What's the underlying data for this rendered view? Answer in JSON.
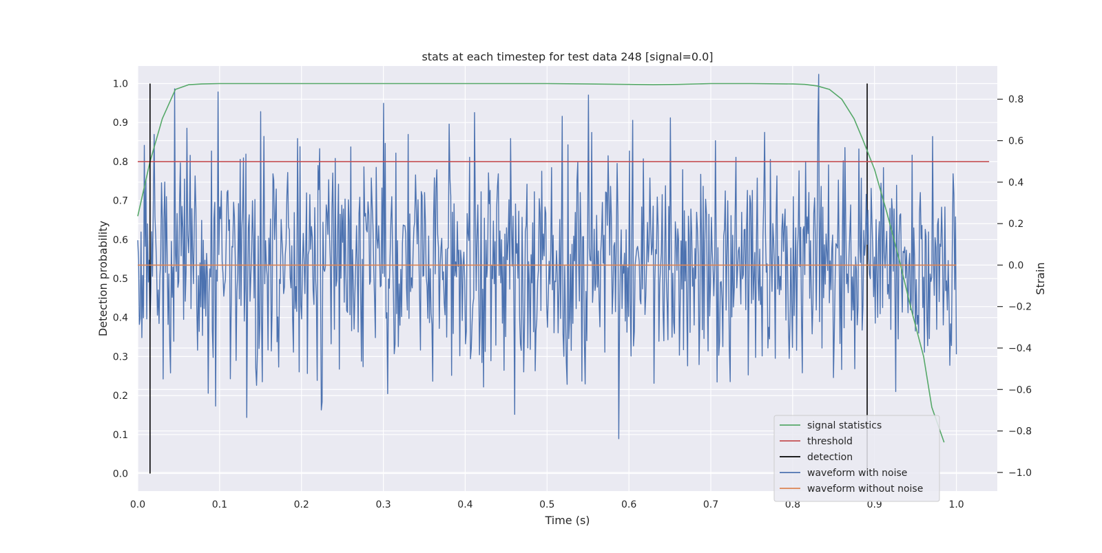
{
  "chart_data": {
    "type": "line",
    "title": "stats at each timestep for test data 248 [signal=0.0]",
    "xlabel": "Time (s)",
    "ylabel_left": "Detection probability",
    "ylabel_right": "Strain",
    "xlim": [
      0.0,
      1.05
    ],
    "ylim_left": [
      -0.045,
      1.045
    ],
    "ylim_right": [
      -1.09,
      0.96
    ],
    "x_ticks": [
      "0.0",
      "0.1",
      "0.2",
      "0.3",
      "0.4",
      "0.5",
      "0.6",
      "0.7",
      "0.8",
      "0.9",
      "1.0"
    ],
    "y_left_ticks": [
      "0.0",
      "0.1",
      "0.2",
      "0.3",
      "0.4",
      "0.5",
      "0.6",
      "0.7",
      "0.8",
      "0.9",
      "1.0"
    ],
    "y_right_ticks": [
      "−1.0",
      "−0.8",
      "−0.6",
      "−0.4",
      "−0.2",
      "0.0",
      "0.2",
      "0.4",
      "0.6",
      "0.8"
    ],
    "grid": true,
    "legend_position": "bottom-right",
    "legend": [
      {
        "label": "signal statistics",
        "color": "#55a868"
      },
      {
        "label": "threshold",
        "color": "#c44e52"
      },
      {
        "label": "detection",
        "color": "#000000"
      },
      {
        "label": "waveform with noise",
        "color": "#4c72b0"
      },
      {
        "label": "waveform without noise",
        "color": "#dd8452"
      }
    ],
    "series": [
      {
        "axis": "left",
        "color": "#55a868",
        "x": [
          0.0,
          0.015,
          0.03,
          0.046,
          0.062,
          0.078,
          0.1,
          0.2,
          0.3,
          0.4,
          0.5,
          0.55,
          0.6,
          0.63,
          0.66,
          0.7,
          0.75,
          0.8,
          0.815,
          0.83,
          0.845,
          0.86,
          0.875,
          0.885,
          0.9,
          0.915,
          0.93,
          0.945,
          0.96,
          0.97,
          0.985
        ],
        "values": [
          0.66,
          0.8,
          0.91,
          0.985,
          0.997,
          0.999,
          1.0,
          1.0,
          1.0,
          1.0,
          1.0,
          0.999,
          0.998,
          0.997,
          0.998,
          1.0,
          1.0,
          0.999,
          0.998,
          0.994,
          0.985,
          0.96,
          0.91,
          0.86,
          0.78,
          0.67,
          0.55,
          0.42,
          0.3,
          0.17,
          0.08
        ]
      },
      {
        "axis": "left",
        "color": "#c44e52",
        "x": [
          0.0,
          1.04
        ],
        "values": [
          0.8,
          0.8
        ]
      },
      {
        "axis": "left",
        "color": "#000000",
        "x": [
          0.015,
          0.015
        ],
        "values": [
          0.0,
          1.0
        ]
      },
      {
        "axis": "left",
        "color": "#000000",
        "x": [
          0.891,
          0.891
        ],
        "values": [
          0.0,
          1.0
        ]
      },
      {
        "axis": "right",
        "color": "#4c72b0",
        "x_start": 0.0,
        "x_end": 1.0,
        "noise_sd": 0.26,
        "values": [
          0.12,
          -0.35,
          0.41,
          -0.28,
          0.63,
          -0.12,
          0.22,
          0.33,
          -0.52,
          0.85,
          -0.08,
          0.18,
          0.66,
          -0.21,
          0.43,
          -0.32,
          0.12,
          -0.05,
          0.55,
          -0.68,
          0.28,
          -0.15,
          0.36,
          0.09,
          -0.46,
          0.51,
          -0.27,
          0.18,
          0.31,
          -0.58,
          0.74,
          -0.09,
          0.13,
          0.44,
          -0.37,
          0.22,
          0.05,
          0.17,
          -0.42,
          0.61,
          -0.26,
          0.08,
          0.34,
          -0.19,
          0.48,
          -0.66,
          0.29,
          0.02,
          -0.31,
          0.39,
          0.11,
          -0.22,
          0.57,
          -0.14,
          0.25,
          -0.49,
          0.16,
          0.42,
          -0.35,
          0.07,
          0.78,
          -0.62,
          0.33,
          0.54,
          -0.29,
          0.19,
          0.63,
          -0.11,
          0.27,
          -0.41,
          0.35,
          0.14,
          -0.56,
          0.46,
          0.08,
          -0.24,
          0.68,
          -0.33,
          0.21,
          0.02,
          -0.38,
          0.52,
          -0.16,
          0.29,
          -0.47,
          0.12,
          0.36,
          -0.09,
          0.44,
          -0.28,
          0.18,
          0.61,
          -0.72,
          0.26,
          -0.13,
          0.39,
          0.05,
          -0.51,
          0.32,
          0.15,
          -0.3,
          0.47,
          -0.08,
          0.22,
          -0.44,
          0.58,
          0.1,
          -0.21,
          0.35,
          -0.36,
          0.82,
          -0.18,
          0.24,
          0.06,
          -0.42,
          0.31,
          -0.12,
          0.49,
          0.17,
          -0.27,
          0.55,
          -0.39,
          0.09,
          0.28,
          -0.15,
          0.42,
          -0.57,
          0.19,
          0.34,
          -0.06,
          0.71,
          -0.33,
          0.12,
          0.46,
          -0.22,
          0.27,
          0.08,
          -0.48,
          0.38,
          -0.1,
          0.23,
          0.6,
          -0.37,
          0.14,
          0.31,
          -0.25,
          0.52,
          -0.04,
          0.17,
          -0.53,
          0.36,
          0.11,
          -0.19,
          0.64,
          -0.3,
          0.2,
          0.43,
          -0.12,
          0.27,
          -0.45,
          0.33,
          0.07,
          -0.26,
          0.5,
          -0.16,
          0.25,
          0.68,
          -0.4,
          0.15,
          0.02,
          -0.34,
          0.41,
          0.18,
          -0.09,
          0.29,
          -0.5,
          0.56,
          -0.2,
          0.1,
          0.37,
          -0.28,
          0.21,
          0.47,
          -0.14,
          0.32,
          -0.61,
          0.24,
          0.06,
          -0.23,
          0.53,
          -0.07,
          0.35,
          -0.42,
          0.16,
          0.62,
          -0.31,
          0.09,
          0.28,
          -0.17,
          0.44
        ]
      },
      {
        "axis": "right",
        "color": "#dd8452",
        "x": [
          0.0,
          1.0
        ],
        "values": [
          0.0,
          0.0
        ]
      }
    ]
  }
}
